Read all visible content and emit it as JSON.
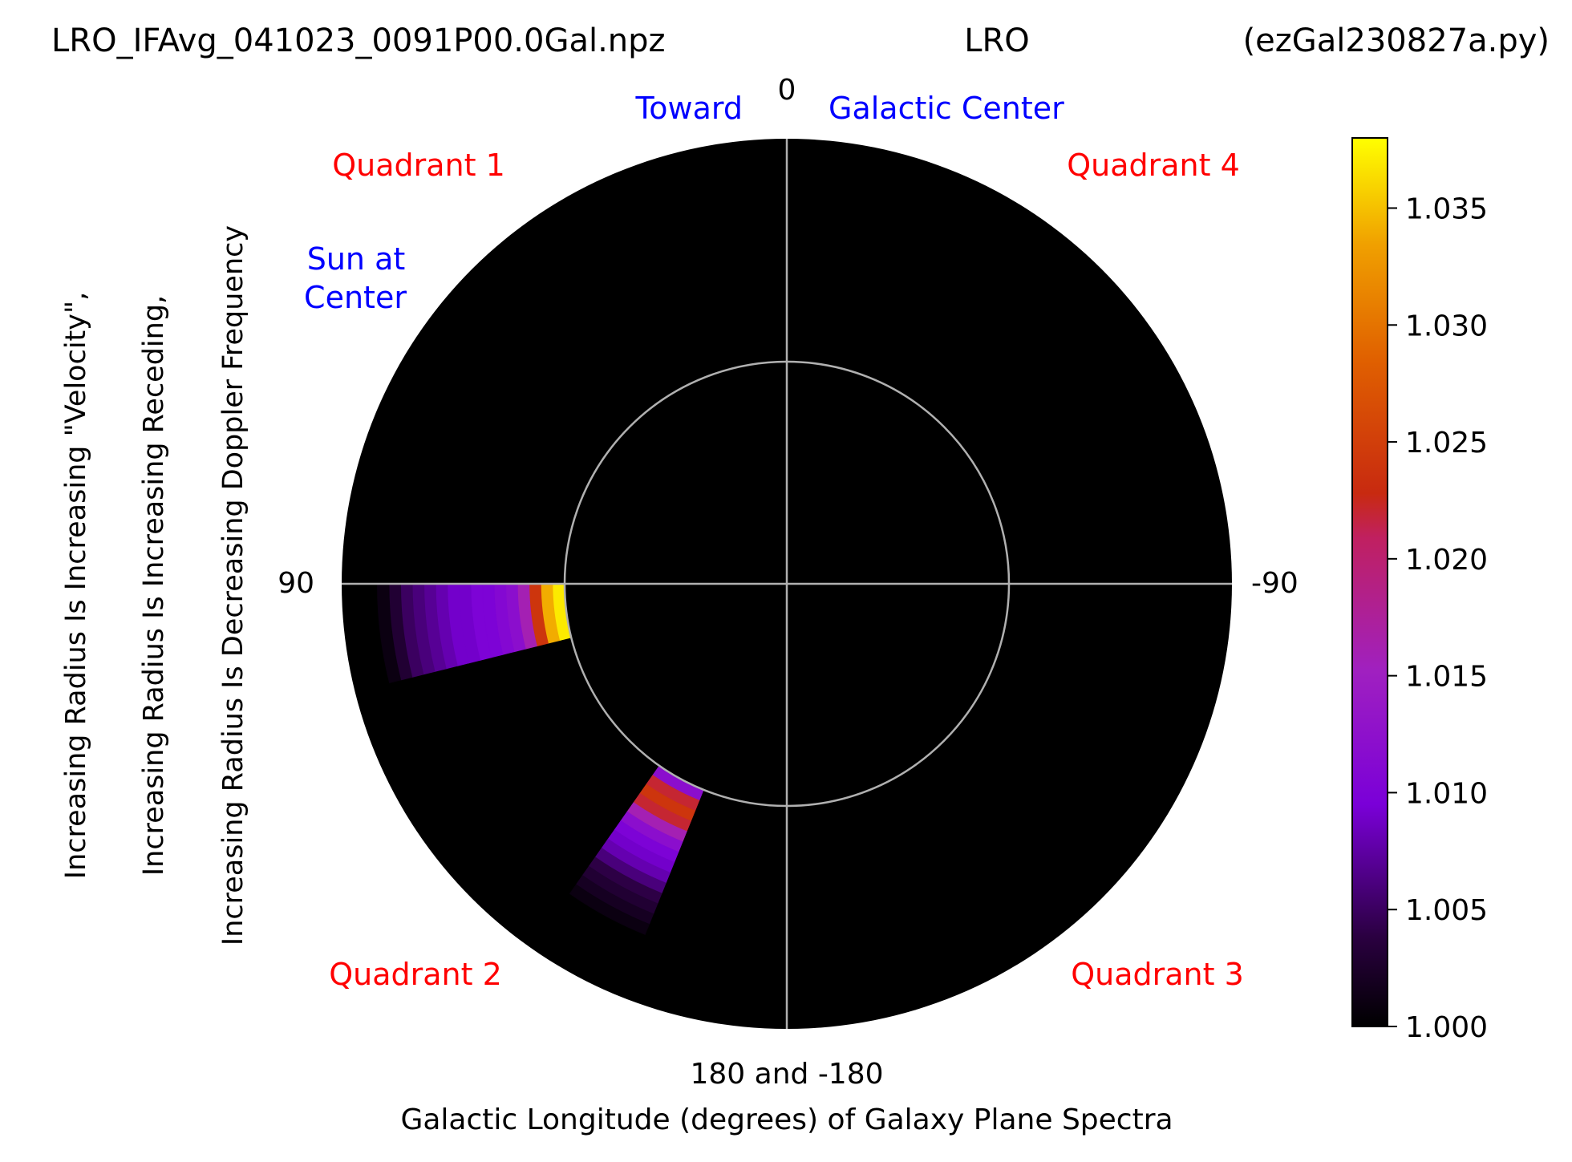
{
  "header": {
    "left": "LRO_IFAvg_041023_0091P00.0Gal.npz",
    "center": "LRO",
    "right": "(ezGal230827a.py)"
  },
  "chart_data": {
    "type": "heatmap",
    "projection": "polar",
    "theta_direction": "counterclockwise, 0 at top",
    "theta_tick_labels": {
      "top": "0",
      "left": "90",
      "right": "-90",
      "bottom": "180 and -180"
    },
    "xlabel": "Galactic Longitude (degrees) of Galaxy Plane Spectra",
    "ylabel_lines": [
      "Increasing Radius Is Increasing \"Velocity\",",
      "Increasing Radius Is Increasing Receding,",
      "Increasing Radius Is Decreasing Doppler Frequency"
    ],
    "grid": true,
    "inner_circle_radius_fraction": 0.5,
    "annotations": {
      "toward": "Toward",
      "galactic_center": "Galactic Center",
      "quadrant_1": "Quadrant 1",
      "quadrant_2": "Quadrant 2",
      "quadrant_3": "Quadrant 3",
      "quadrant_4": "Quadrant 4",
      "sun_line1": "Sun at",
      "sun_line2": "Center"
    },
    "colors": {
      "background": "#000000",
      "quadrant": "#ff0000",
      "direction": "#0000ff",
      "grid": "#b0b0b0"
    },
    "colormap": "gnuplot (black-purple-red-yellow)",
    "colorbar": {
      "vmin": 1.0,
      "vmax": 1.038,
      "ticks": [
        "1.000",
        "1.005",
        "1.010",
        "1.015",
        "1.020",
        "1.025",
        "1.030",
        "1.035"
      ]
    },
    "wedges": [
      {
        "longitude_range_deg": [
          90,
          104
        ],
        "radius_range_fraction": [
          0.5,
          0.92
        ],
        "values_inner_to_outer": [
          1.037,
          1.034,
          1.024,
          1.016,
          1.012,
          1.011,
          1.01,
          1.01,
          1.009,
          1.009,
          1.008,
          1.007,
          1.006,
          1.005,
          1.003,
          1.001
        ]
      },
      {
        "longitude_range_deg": [
          145,
          158
        ],
        "radius_range_fraction": [
          0.5,
          0.85
        ],
        "values_inner_to_outer": [
          1.012,
          1.022,
          1.024,
          1.022,
          1.016,
          1.012,
          1.01,
          1.009,
          1.008,
          1.006,
          1.004,
          1.003,
          1.002,
          1.001
        ]
      }
    ]
  }
}
